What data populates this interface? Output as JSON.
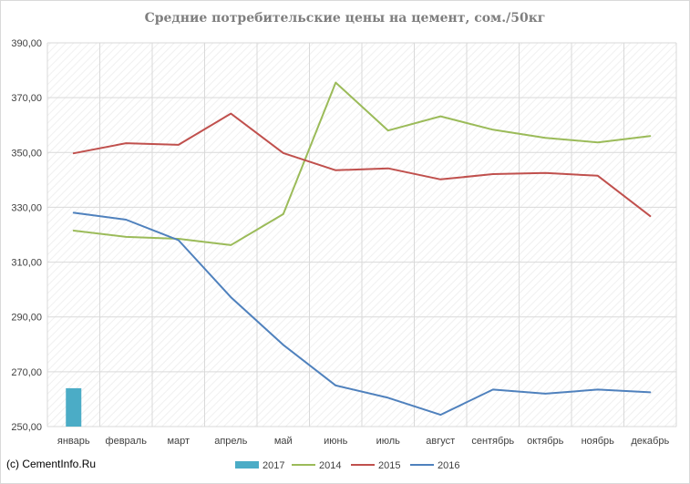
{
  "chart_data": {
    "type": "line",
    "title": "Средние потребительские цены на цемент, сом./50кг",
    "categories": [
      "январь",
      "февраль",
      "март",
      "апрель",
      "май",
      "июнь",
      "июль",
      "август",
      "сентябрь",
      "октябрь",
      "ноябрь",
      "декабрь"
    ],
    "ylim": [
      250,
      390
    ],
    "yticks": [
      "250,00",
      "270,00",
      "290,00",
      "310,00",
      "330,00",
      "350,00",
      "370,00",
      "390,00"
    ],
    "grid": true,
    "legend_position": "bottom",
    "series": [
      {
        "name": "2017",
        "type": "bar",
        "color": "#4bacc6",
        "values": [
          264,
          null,
          null,
          null,
          null,
          null,
          null,
          null,
          null,
          null,
          null,
          null
        ]
      },
      {
        "name": "2014",
        "type": "line",
        "color": "#9bbb59",
        "values": [
          321.5,
          319.2,
          318.5,
          316.2,
          327.5,
          375.5,
          358,
          363.2,
          358.3,
          355.3,
          353.7,
          356
        ]
      },
      {
        "name": "2015",
        "type": "line",
        "color": "#c0504d",
        "values": [
          349.7,
          353.4,
          352.8,
          364.2,
          349.8,
          343.5,
          344.2,
          340.2,
          342.1,
          342.5,
          341.5,
          326.8
        ]
      },
      {
        "name": "2016",
        "type": "line",
        "color": "#4f81bd",
        "values": [
          328,
          325.5,
          318,
          297.2,
          279.8,
          265,
          260.5,
          254.3,
          263.5,
          262,
          263.5,
          262.5
        ]
      }
    ]
  },
  "footer": {
    "copyright": "(c) CementInfo.Ru"
  }
}
